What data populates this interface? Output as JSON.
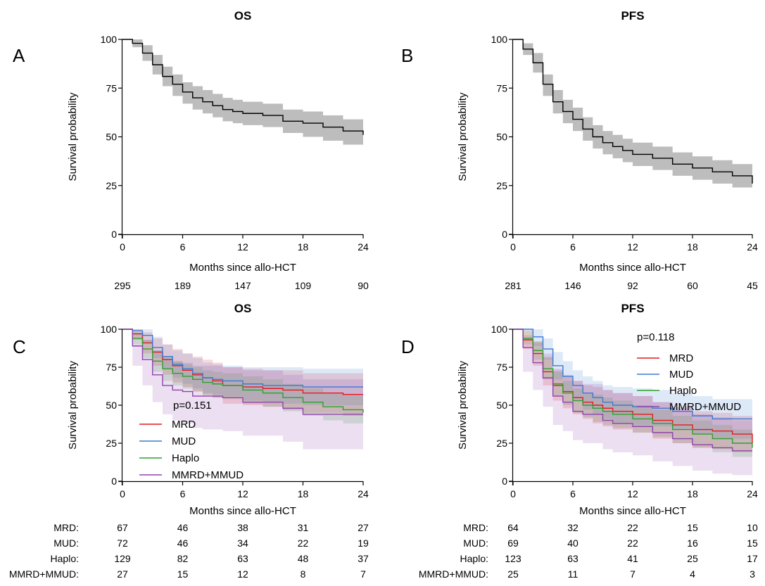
{
  "chart_data": [
    {
      "type": "line",
      "panel_letter": "A",
      "title": "OS",
      "xlabel": "Months since allo-HCT",
      "ylabel": "Survival probability",
      "xlim": [
        0,
        24
      ],
      "ylim": [
        0,
        100
      ],
      "xticks": [
        "0",
        "6",
        "12",
        "18",
        "24"
      ],
      "yticks": [
        "0",
        "25",
        "50",
        "75",
        "100"
      ],
      "grid": false,
      "series": [
        {
          "color": "#000000",
          "band_color": "#bdbdbd",
          "x": [
            0,
            1,
            2,
            3,
            4,
            5,
            6,
            7,
            8,
            9,
            10,
            11,
            12,
            14,
            16,
            18,
            20,
            22,
            24
          ],
          "y": [
            100,
            98,
            93,
            87,
            81,
            77,
            73,
            70,
            68,
            66,
            64,
            63,
            62,
            61,
            58,
            57,
            55,
            53,
            51
          ],
          "lower": [
            100,
            96,
            89,
            82,
            76,
            71,
            67,
            64,
            62,
            60,
            58,
            57,
            56,
            55,
            52,
            50,
            48,
            46,
            45
          ],
          "upper": [
            100,
            100,
            97,
            92,
            86,
            82,
            78,
            76,
            74,
            72,
            70,
            69,
            68,
            67,
            64,
            63,
            61,
            59,
            58
          ]
        }
      ],
      "risk_table": {
        "rows": [
          {
            "label": "",
            "values": [
              "295",
              "189",
              "147",
              "109",
              "90"
            ]
          }
        ]
      }
    },
    {
      "type": "line",
      "panel_letter": "B",
      "title": "PFS",
      "xlabel": "Months since allo-HCT",
      "ylabel": "Survival probability",
      "xlim": [
        0,
        24
      ],
      "ylim": [
        0,
        100
      ],
      "xticks": [
        "0",
        "6",
        "12",
        "18",
        "24"
      ],
      "yticks": [
        "0",
        "25",
        "50",
        "75",
        "100"
      ],
      "grid": false,
      "series": [
        {
          "color": "#000000",
          "band_color": "#bdbdbd",
          "x": [
            0,
            1,
            2,
            3,
            4,
            5,
            6,
            7,
            8,
            9,
            10,
            11,
            12,
            14,
            16,
            18,
            20,
            22,
            24
          ],
          "y": [
            100,
            95,
            88,
            77,
            68,
            63,
            59,
            54,
            50,
            47,
            45,
            43,
            41,
            39,
            36,
            34,
            32,
            30,
            26
          ],
          "lower": [
            100,
            92,
            83,
            71,
            62,
            57,
            53,
            48,
            44,
            41,
            39,
            37,
            35,
            33,
            30,
            28,
            26,
            24,
            21
          ],
          "upper": [
            100,
            98,
            93,
            82,
            74,
            69,
            65,
            60,
            56,
            53,
            51,
            49,
            47,
            45,
            42,
            40,
            38,
            36,
            31
          ]
        }
      ],
      "risk_table": {
        "rows": [
          {
            "label": "",
            "values": [
              "281",
              "146",
              "92",
              "60",
              "45"
            ]
          }
        ]
      }
    },
    {
      "type": "line",
      "panel_letter": "C",
      "title": "OS",
      "xlabel": "Months since allo-HCT",
      "ylabel": "Survival probability",
      "xlim": [
        0,
        24
      ],
      "ylim": [
        0,
        100
      ],
      "xticks": [
        "0",
        "6",
        "12",
        "18",
        "24"
      ],
      "yticks": [
        "0",
        "25",
        "50",
        "75",
        "100"
      ],
      "grid": false,
      "annotation": "p=0.151",
      "legend_position": "bottom-left",
      "series": [
        {
          "name": "MRD",
          "color": "#e31a1c",
          "x": [
            0,
            1,
            2,
            3,
            4,
            5,
            6,
            7,
            8,
            9,
            10,
            12,
            14,
            16,
            18,
            20,
            22,
            24
          ],
          "y": [
            100,
            97,
            91,
            85,
            80,
            76,
            73,
            70,
            68,
            66,
            63,
            62,
            61,
            60,
            58,
            58,
            57,
            57
          ],
          "lower": [
            100,
            93,
            84,
            76,
            70,
            65,
            62,
            59,
            57,
            55,
            51,
            50,
            49,
            47,
            45,
            45,
            43,
            43
          ],
          "upper": [
            100,
            100,
            98,
            94,
            90,
            87,
            84,
            82,
            80,
            78,
            75,
            74,
            73,
            73,
            71,
            71,
            71,
            71
          ]
        },
        {
          "name": "MUD",
          "color": "#3a7bd5",
          "x": [
            0,
            1,
            2,
            3,
            4,
            5,
            6,
            7,
            8,
            9,
            10,
            12,
            14,
            16,
            18,
            20,
            22,
            24
          ],
          "y": [
            100,
            99,
            96,
            88,
            82,
            77,
            74,
            71,
            68,
            67,
            66,
            64,
            63,
            63,
            62,
            62,
            62,
            62
          ],
          "lower": [
            100,
            96,
            91,
            81,
            74,
            68,
            64,
            61,
            58,
            57,
            56,
            53,
            52,
            51,
            50,
            50,
            50,
            50
          ],
          "upper": [
            100,
            100,
            100,
            95,
            90,
            86,
            84,
            81,
            78,
            77,
            76,
            75,
            75,
            75,
            74,
            74,
            74,
            74
          ]
        },
        {
          "name": "Haplo",
          "color": "#2ca02c",
          "x": [
            0,
            1,
            2,
            3,
            4,
            5,
            6,
            7,
            8,
            9,
            10,
            12,
            14,
            16,
            18,
            20,
            22,
            24
          ],
          "y": [
            100,
            94,
            87,
            79,
            74,
            71,
            69,
            67,
            65,
            64,
            63,
            60,
            58,
            55,
            52,
            49,
            47,
            45
          ],
          "lower": [
            100,
            90,
            81,
            72,
            66,
            63,
            61,
            59,
            56,
            55,
            54,
            51,
            49,
            46,
            43,
            40,
            38,
            35
          ],
          "upper": [
            100,
            98,
            93,
            86,
            82,
            79,
            77,
            75,
            73,
            72,
            71,
            69,
            67,
            64,
            61,
            58,
            56,
            55
          ]
        },
        {
          "name": "MMRD+MMUD",
          "color": "#8e44ad",
          "x": [
            0,
            1,
            2,
            3,
            4,
            5,
            6,
            7,
            8,
            9,
            10,
            12,
            14,
            16,
            18,
            20,
            22,
            24
          ],
          "y": [
            100,
            89,
            80,
            70,
            63,
            60,
            59,
            56,
            56,
            56,
            55,
            52,
            52,
            48,
            44,
            44,
            44,
            44
          ],
          "lower": [
            100,
            76,
            63,
            52,
            44,
            40,
            38,
            35,
            34,
            34,
            33,
            30,
            30,
            26,
            21,
            21,
            21,
            21
          ],
          "upper": [
            100,
            97,
            93,
            86,
            81,
            79,
            78,
            76,
            76,
            76,
            75,
            73,
            73,
            70,
            67,
            67,
            67,
            67
          ]
        }
      ],
      "risk_table": {
        "rows": [
          {
            "label": "MRD:",
            "values": [
              "67",
              "46",
              "38",
              "31",
              "27"
            ]
          },
          {
            "label": "MUD:",
            "values": [
              "72",
              "46",
              "34",
              "22",
              "19"
            ]
          },
          {
            "label": "Haplo:",
            "values": [
              "129",
              "82",
              "63",
              "48",
              "37"
            ]
          },
          {
            "label": "MMRD+MMUD:",
            "values": [
              "27",
              "15",
              "12",
              "8",
              "7"
            ]
          }
        ]
      }
    },
    {
      "type": "line",
      "panel_letter": "D",
      "title": "PFS",
      "xlabel": "Months since allo-HCT",
      "ylabel": "Survival probability",
      "xlim": [
        0,
        24
      ],
      "ylim": [
        0,
        100
      ],
      "xticks": [
        "0",
        "6",
        "12",
        "18",
        "24"
      ],
      "yticks": [
        "0",
        "25",
        "50",
        "75",
        "100"
      ],
      "grid": false,
      "annotation": "p=0.118",
      "legend_position": "top-right",
      "series": [
        {
          "name": "MRD",
          "color": "#e31a1c",
          "x": [
            0,
            1,
            2,
            3,
            4,
            5,
            6,
            7,
            8,
            9,
            10,
            12,
            14,
            16,
            18,
            20,
            22,
            24
          ],
          "y": [
            100,
            93,
            84,
            72,
            63,
            59,
            55,
            52,
            50,
            48,
            46,
            44,
            40,
            37,
            34,
            33,
            31,
            25
          ],
          "lower": [
            100,
            87,
            76,
            63,
            53,
            48,
            44,
            41,
            38,
            36,
            34,
            32,
            28,
            25,
            22,
            21,
            19,
            14
          ],
          "upper": [
            100,
            99,
            92,
            82,
            73,
            69,
            66,
            63,
            62,
            60,
            58,
            56,
            52,
            49,
            46,
            45,
            43,
            37
          ]
        },
        {
          "name": "MUD",
          "color": "#3a7bd5",
          "x": [
            0,
            1,
            2,
            3,
            4,
            5,
            6,
            7,
            8,
            9,
            10,
            12,
            14,
            16,
            18,
            20,
            22,
            24
          ],
          "y": [
            100,
            100,
            95,
            87,
            76,
            69,
            63,
            58,
            55,
            52,
            50,
            49,
            48,
            46,
            43,
            41,
            41,
            41
          ],
          "lower": [
            100,
            98,
            89,
            80,
            67,
            59,
            53,
            47,
            44,
            41,
            38,
            37,
            36,
            34,
            31,
            28,
            28,
            28
          ],
          "upper": [
            100,
            100,
            100,
            94,
            85,
            79,
            73,
            69,
            66,
            63,
            62,
            61,
            60,
            58,
            56,
            54,
            54,
            54
          ]
        },
        {
          "name": "Haplo",
          "color": "#2ca02c",
          "x": [
            0,
            1,
            2,
            3,
            4,
            5,
            6,
            7,
            8,
            9,
            10,
            12,
            14,
            16,
            18,
            20,
            22,
            24
          ],
          "y": [
            100,
            94,
            86,
            74,
            64,
            58,
            53,
            50,
            48,
            46,
            44,
            41,
            38,
            34,
            31,
            28,
            25,
            22
          ],
          "lower": [
            100,
            90,
            80,
            67,
            56,
            50,
            45,
            42,
            39,
            37,
            35,
            32,
            29,
            25,
            22,
            19,
            16,
            13
          ],
          "upper": [
            100,
            98,
            92,
            81,
            72,
            66,
            61,
            58,
            57,
            55,
            53,
            50,
            47,
            43,
            40,
            37,
            34,
            31
          ]
        },
        {
          "name": "MMRD+MMUD",
          "color": "#8e44ad",
          "x": [
            0,
            1,
            2,
            3,
            4,
            5,
            6,
            7,
            8,
            9,
            10,
            12,
            14,
            16,
            18,
            20,
            22,
            24
          ],
          "y": [
            100,
            88,
            78,
            68,
            56,
            52,
            46,
            44,
            44,
            40,
            38,
            36,
            32,
            28,
            24,
            22,
            20,
            20
          ],
          "lower": [
            100,
            72,
            60,
            49,
            37,
            33,
            27,
            25,
            25,
            21,
            19,
            17,
            13,
            10,
            7,
            5,
            4,
            4
          ],
          "upper": [
            100,
            96,
            91,
            84,
            74,
            70,
            66,
            64,
            64,
            60,
            58,
            56,
            52,
            48,
            44,
            42,
            40,
            40
          ]
        }
      ],
      "risk_table": {
        "rows": [
          {
            "label": "MRD:",
            "values": [
              "64",
              "32",
              "22",
              "15",
              "10"
            ]
          },
          {
            "label": "MUD:",
            "values": [
              "69",
              "40",
              "22",
              "16",
              "15"
            ]
          },
          {
            "label": "Haplo:",
            "values": [
              "123",
              "63",
              "41",
              "25",
              "17"
            ]
          },
          {
            "label": "MMRD+MMUD:",
            "values": [
              "25",
              "11",
              "7",
              "4",
              "3"
            ]
          }
        ]
      }
    }
  ]
}
